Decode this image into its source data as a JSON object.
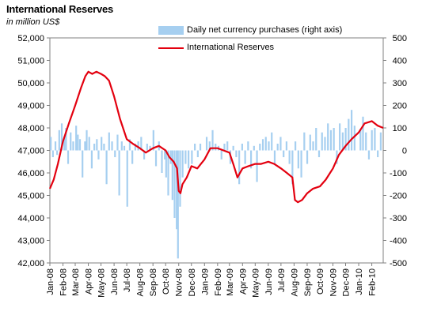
{
  "chart_data": {
    "type": "bar",
    "title": "International Reserves",
    "subtitle": "in million US$",
    "colors": {
      "purchases": "#a6cff0",
      "reserves": "#e3000f"
    },
    "left_axis": {
      "min": 42000,
      "max": 52000,
      "step": 1000,
      "tick_labels": [
        "42,000",
        "43,000",
        "44,000",
        "45,000",
        "46,000",
        "47,000",
        "48,000",
        "49,000",
        "50,000",
        "51,000",
        "52,000"
      ]
    },
    "right_axis": {
      "min": -500,
      "max": 500,
      "step": 100,
      "tick_labels": [
        "-500",
        "-400",
        "-300",
        "-200",
        "-100",
        "0",
        "100",
        "200",
        "300",
        "400",
        "500"
      ]
    },
    "x_axis": {
      "start": "2008-01-01",
      "end": "2010-02-28",
      "tick_labels": [
        "Jan-08",
        "Feb-08",
        "Mar-08",
        "Apr-08",
        "May-08",
        "Jun-08",
        "Jul-08",
        "Aug-08",
        "Sep-08",
        "Oct-08",
        "Nov-08",
        "Dec-08",
        "Jan-09",
        "Feb-09",
        "Mar-09",
        "Apr-09",
        "May-09",
        "Jun-09",
        "Jul-09",
        "Aug-09",
        "Sep-09",
        "Oct-09",
        "Nov-09",
        "Dec-09",
        "Jan-10",
        "Feb-10"
      ],
      "tick_dates": [
        "2008-01-01",
        "2008-02-01",
        "2008-03-01",
        "2008-04-01",
        "2008-05-01",
        "2008-06-01",
        "2008-07-01",
        "2008-08-01",
        "2008-09-01",
        "2008-10-01",
        "2008-11-01",
        "2008-12-01",
        "2009-01-01",
        "2009-02-01",
        "2009-03-01",
        "2009-04-01",
        "2009-05-01",
        "2009-06-01",
        "2009-07-01",
        "2009-08-01",
        "2009-09-01",
        "2009-10-01",
        "2009-11-01",
        "2009-12-01",
        "2010-01-01",
        "2010-02-01"
      ]
    },
    "legend": {
      "position": "top",
      "entries": [
        "Daily net currency purchases (right axis)",
        "International Reserves"
      ]
    },
    "series": [
      {
        "name": "International Reserves",
        "axis": "left",
        "type": "line",
        "x": [
          "2008-01-01",
          "2008-01-10",
          "2008-01-20",
          "2008-02-01",
          "2008-02-15",
          "2008-03-01",
          "2008-03-15",
          "2008-03-25",
          "2008-04-01",
          "2008-04-10",
          "2008-04-20",
          "2008-05-01",
          "2008-05-10",
          "2008-05-20",
          "2008-06-01",
          "2008-06-15",
          "2008-07-01",
          "2008-07-15",
          "2008-08-01",
          "2008-08-15",
          "2008-09-01",
          "2008-09-15",
          "2008-10-01",
          "2008-10-10",
          "2008-10-20",
          "2008-10-28",
          "2008-11-01",
          "2008-11-05",
          "2008-11-10",
          "2008-11-20",
          "2008-12-01",
          "2008-12-15",
          "2009-01-01",
          "2009-01-15",
          "2009-02-01",
          "2009-02-15",
          "2009-03-01",
          "2009-03-10",
          "2009-03-20",
          "2009-04-01",
          "2009-04-15",
          "2009-05-01",
          "2009-05-15",
          "2009-06-01",
          "2009-06-15",
          "2009-07-01",
          "2009-07-15",
          "2009-07-28",
          "2009-08-03",
          "2009-08-10",
          "2009-08-20",
          "2009-09-01",
          "2009-09-15",
          "2009-10-01",
          "2009-10-15",
          "2009-11-01",
          "2009-11-15",
          "2009-12-01",
          "2009-12-15",
          "2010-01-01",
          "2010-01-15",
          "2010-02-01",
          "2010-02-15",
          "2010-02-28"
        ],
        "values": [
          45300,
          45700,
          46400,
          47400,
          48200,
          49000,
          49800,
          50300,
          50500,
          50400,
          50500,
          50400,
          50300,
          50100,
          49400,
          48400,
          47500,
          47300,
          47100,
          46900,
          47100,
          47200,
          47000,
          46700,
          46500,
          46200,
          45200,
          45100,
          45500,
          45800,
          46300,
          46200,
          46600,
          47100,
          47100,
          47000,
          46900,
          46400,
          45800,
          46200,
          46300,
          46400,
          46400,
          46500,
          46400,
          46200,
          46000,
          45800,
          44800,
          44700,
          44800,
          45100,
          45300,
          45400,
          45700,
          46200,
          46800,
          47200,
          47500,
          47800,
          48200,
          48300,
          48100,
          48000
        ]
      },
      {
        "name": "Daily net currency purchases (right axis)",
        "axis": "right",
        "type": "bar",
        "x": [
          "2008-01-03",
          "2008-01-08",
          "2008-01-14",
          "2008-01-18",
          "2008-01-23",
          "2008-01-29",
          "2008-02-04",
          "2008-02-08",
          "2008-02-13",
          "2008-02-19",
          "2008-02-25",
          "2008-03-03",
          "2008-03-07",
          "2008-03-12",
          "2008-03-18",
          "2008-03-24",
          "2008-03-28",
          "2008-04-03",
          "2008-04-09",
          "2008-04-15",
          "2008-04-21",
          "2008-04-25",
          "2008-05-02",
          "2008-05-08",
          "2008-05-14",
          "2008-05-20",
          "2008-05-27",
          "2008-06-03",
          "2008-06-09",
          "2008-06-13",
          "2008-06-19",
          "2008-06-25",
          "2008-07-02",
          "2008-07-08",
          "2008-07-14",
          "2008-07-21",
          "2008-07-28",
          "2008-08-04",
          "2008-08-11",
          "2008-08-18",
          "2008-08-25",
          "2008-09-02",
          "2008-09-08",
          "2008-09-15",
          "2008-09-22",
          "2008-09-29",
          "2008-10-02",
          "2008-10-07",
          "2008-10-13",
          "2008-10-17",
          "2008-10-22",
          "2008-10-27",
          "2008-10-30",
          "2008-11-04",
          "2008-11-10",
          "2008-11-17",
          "2008-11-24",
          "2008-12-02",
          "2008-12-09",
          "2008-12-16",
          "2008-12-22",
          "2009-01-06",
          "2009-01-13",
          "2009-01-20",
          "2009-01-27",
          "2009-02-03",
          "2009-02-10",
          "2009-02-17",
          "2009-02-24",
          "2009-03-03",
          "2009-03-10",
          "2009-03-17",
          "2009-03-24",
          "2009-03-31",
          "2009-04-07",
          "2009-04-14",
          "2009-04-21",
          "2009-04-28",
          "2009-05-05",
          "2009-05-12",
          "2009-05-19",
          "2009-05-26",
          "2009-06-02",
          "2009-06-09",
          "2009-06-16",
          "2009-06-23",
          "2009-06-30",
          "2009-07-07",
          "2009-07-14",
          "2009-07-21",
          "2009-07-28",
          "2009-08-04",
          "2009-08-11",
          "2009-08-18",
          "2009-08-25",
          "2009-09-01",
          "2009-09-08",
          "2009-09-15",
          "2009-09-22",
          "2009-09-29",
          "2009-10-06",
          "2009-10-13",
          "2009-10-20",
          "2009-10-27",
          "2009-11-03",
          "2009-11-10",
          "2009-11-17",
          "2009-11-24",
          "2009-12-01",
          "2009-12-08",
          "2009-12-15",
          "2009-12-22",
          "2010-01-05",
          "2010-01-11",
          "2010-01-18",
          "2010-01-25",
          "2010-02-01",
          "2010-02-08",
          "2010-02-15",
          "2010-02-22"
        ],
        "values": [
          60,
          -30,
          40,
          -20,
          90,
          120,
          60,
          100,
          -60,
          80,
          40,
          110,
          70,
          50,
          -120,
          40,
          90,
          60,
          -80,
          30,
          50,
          -40,
          60,
          30,
          -150,
          80,
          40,
          -30,
          70,
          -200,
          40,
          20,
          -250,
          50,
          -60,
          30,
          40,
          60,
          -40,
          30,
          20,
          90,
          -70,
          40,
          -100,
          -40,
          -120,
          -200,
          -60,
          -220,
          -300,
          -350,
          -480,
          -250,
          -120,
          -60,
          -80,
          -60,
          30,
          -30,
          30,
          60,
          40,
          90,
          30,
          20,
          -40,
          30,
          40,
          -60,
          20,
          -30,
          -150,
          30,
          -60,
          40,
          -80,
          20,
          -140,
          30,
          50,
          60,
          40,
          80,
          -60,
          30,
          60,
          -30,
          40,
          -60,
          -150,
          40,
          -80,
          -120,
          80,
          -60,
          70,
          40,
          100,
          -30,
          80,
          60,
          120,
          90,
          100,
          -60,
          120,
          80,
          100,
          140,
          180,
          110,
          90,
          150,
          80,
          -40,
          90,
          100,
          -30,
          80
        ]
      }
    ]
  }
}
